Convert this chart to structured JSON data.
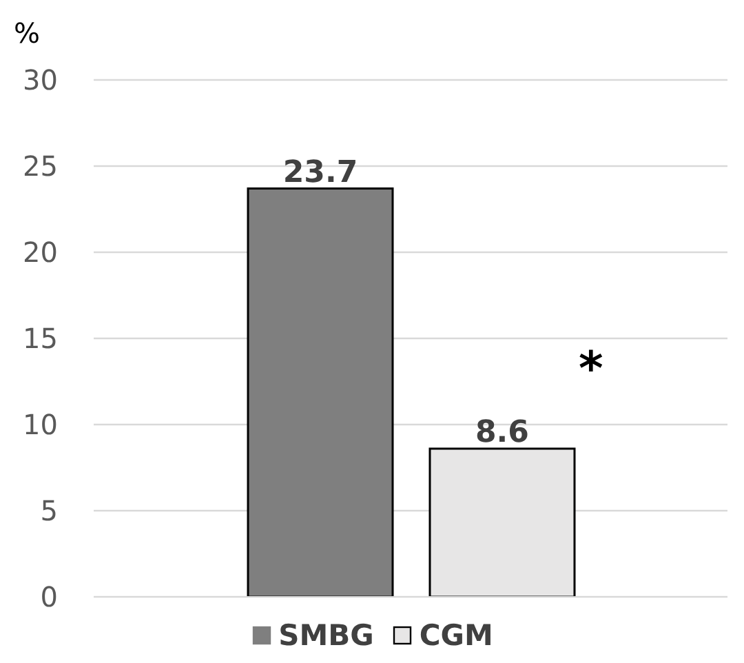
{
  "chart_data": {
    "type": "bar",
    "ylabel": "%",
    "categories": [
      null
    ],
    "series": [
      {
        "name": "SMBG",
        "color": "#7f7f7f",
        "values": [
          23.7
        ]
      },
      {
        "name": "CGM",
        "color": "#e7e6e6",
        "values": [
          8.6
        ]
      }
    ],
    "ylim": [
      0,
      30
    ],
    "yticks": [
      0,
      5,
      10,
      15,
      20,
      25,
      30
    ],
    "grid": "y",
    "legend": "bottom",
    "data_labels": true,
    "annotations": [
      "*"
    ]
  }
}
